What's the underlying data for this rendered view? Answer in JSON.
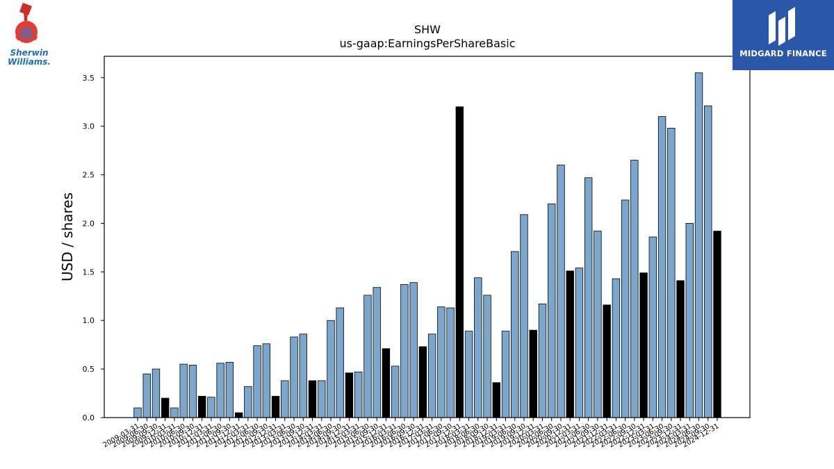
{
  "logos": {
    "left": {
      "text_line1": "Sherwin",
      "text_line2": "Williams.",
      "icon": "cover-the-earth-logo-icon"
    },
    "right": {
      "text": "MIDGARD FINANCE",
      "icon": "midgard-finance-logo-icon"
    }
  },
  "colors": {
    "bar_blue": "#7ba7cd",
    "bar_black": "#000000",
    "logo_right_bg": "#2b57a8"
  },
  "chart_data": {
    "type": "bar",
    "title": "SHW",
    "subtitle": "us-gaap:EarningsPerShareBasic",
    "xlabel": "",
    "ylabel": "USD / shares",
    "ylim": [
      0,
      3.72
    ],
    "yticks": [
      "0.0",
      "0.5",
      "1.0",
      "1.5",
      "2.0",
      "2.5",
      "3.0",
      "3.5"
    ],
    "grid": false,
    "categories": [
      "2009-03-31",
      "2009-06-30",
      "2009-09-30",
      "2009-12-31",
      "2010-03-31",
      "2010-06-30",
      "2010-09-30",
      "2010-12-31",
      "2011-03-31",
      "2011-06-30",
      "2011-09-30",
      "2011-12-31",
      "2012-03-31",
      "2012-06-30",
      "2012-09-30",
      "2012-12-31",
      "2013-03-31",
      "2013-06-30",
      "2013-09-30",
      "2013-12-31",
      "2014-03-31",
      "2014-06-30",
      "2014-09-30",
      "2014-12-31",
      "2015-03-31",
      "2015-06-30",
      "2015-09-30",
      "2015-12-31",
      "2016-03-31",
      "2016-06-30",
      "2016-09-30",
      "2016-12-31",
      "2017-03-31",
      "2017-06-30",
      "2017-09-30",
      "2017-12-31",
      "2018-03-31",
      "2018-06-30",
      "2018-09-30",
      "2018-12-31",
      "2019-03-31",
      "2019-06-30",
      "2019-09-30",
      "2019-12-31",
      "2020-03-31",
      "2020-06-30",
      "2020-09-30",
      "2020-12-31",
      "2021-03-31",
      "2021-06-30",
      "2021-09-30",
      "2021-12-31",
      "2022-03-31",
      "2022-06-30",
      "2022-09-30",
      "2022-12-31",
      "2023-03-31",
      "2023-06-30",
      "2023-09-30",
      "2023-12-31",
      "2024-03-31",
      "2024-06-30",
      "2024-09-30",
      "2024-12-31"
    ],
    "values": [
      0.1,
      0.45,
      0.5,
      0.2,
      0.1,
      0.55,
      0.54,
      0.22,
      0.21,
      0.56,
      0.57,
      0.05,
      0.32,
      0.74,
      0.76,
      0.22,
      0.38,
      0.83,
      0.86,
      0.38,
      0.38,
      1.0,
      1.13,
      0.46,
      0.47,
      1.26,
      1.34,
      0.71,
      0.53,
      1.37,
      1.39,
      0.73,
      0.86,
      1.14,
      1.13,
      3.2,
      0.89,
      1.44,
      1.26,
      0.36,
      0.89,
      1.71,
      2.09,
      0.9,
      1.17,
      2.2,
      2.6,
      1.51,
      1.54,
      2.47,
      1.92,
      1.16,
      1.43,
      2.24,
      2.65,
      1.49,
      1.86,
      3.1,
      2.98,
      1.41,
      2.0,
      3.55,
      3.21,
      1.92
    ],
    "quarter_end_highlight": "black bars at Q4 (YYYY-12-31) periods"
  }
}
